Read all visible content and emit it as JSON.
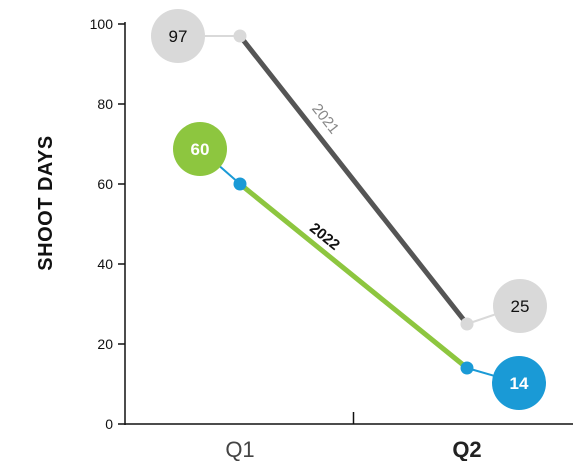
{
  "chart_data": {
    "type": "line",
    "title": "",
    "xlabel": "",
    "ylabel": "SHOOT DAYS",
    "categories": [
      "Q1",
      "Q2"
    ],
    "category_bold": [
      false,
      true
    ],
    "ylim": [
      0,
      100
    ],
    "yticks": [
      0,
      20,
      40,
      60,
      80,
      100
    ],
    "grid": false,
    "series": [
      {
        "name": "2021",
        "values": [
          97,
          25
        ],
        "labels": [
          "97",
          "25"
        ],
        "line_color": "#555555",
        "point_color": "#d9d9d9",
        "bubble_color": "#d9d9d9",
        "connector_color": "#d9d9d9",
        "text_color": "#111111",
        "name_color": "#888888"
      },
      {
        "name": "2022",
        "values": [
          60,
          14
        ],
        "labels": [
          "60",
          "14"
        ],
        "line_color": "#8dc63f",
        "point_color": "#1a9ad6",
        "bubble_colors": [
          "#8dc63f",
          "#1a9ad6"
        ],
        "connector_color": "#1a9ad6",
        "text_color": "#ffffff",
        "name_color": "#111111"
      }
    ]
  }
}
